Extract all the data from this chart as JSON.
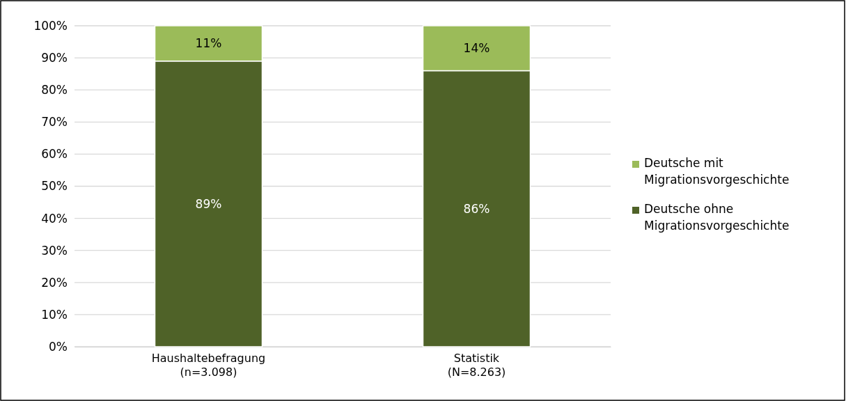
{
  "chart_data": {
    "type": "bar",
    "stacked": true,
    "categories": [
      "Haushaltebefragung\n(n=3.098)",
      "Statistik\n(N=8.263)"
    ],
    "series": [
      {
        "name": "Deutsche ohne Migrationsvorgeschichte",
        "color": "#4f6228",
        "values": [
          89,
          86
        ],
        "value_labels": [
          "89%",
          "86%"
        ]
      },
      {
        "name": "Deutsche mit Migrationsvorgeschichte",
        "color": "#9bbb59",
        "values": [
          11,
          14
        ],
        "value_labels": [
          "11%",
          "14%"
        ]
      }
    ],
    "ylim": [
      0,
      100
    ],
    "yticks": [
      {
        "value": 0,
        "label": "0%"
      },
      {
        "value": 10,
        "label": "10%"
      },
      {
        "value": 20,
        "label": "20%"
      },
      {
        "value": 30,
        "label": "30%"
      },
      {
        "value": 40,
        "label": "40%"
      },
      {
        "value": 50,
        "label": "50%"
      },
      {
        "value": 60,
        "label": "60%"
      },
      {
        "value": 70,
        "label": "70%"
      },
      {
        "value": 80,
        "label": "80%"
      },
      {
        "value": 90,
        "label": "90%"
      },
      {
        "value": 100,
        "label": "100%"
      }
    ],
    "grid": "y",
    "legend": "right"
  }
}
